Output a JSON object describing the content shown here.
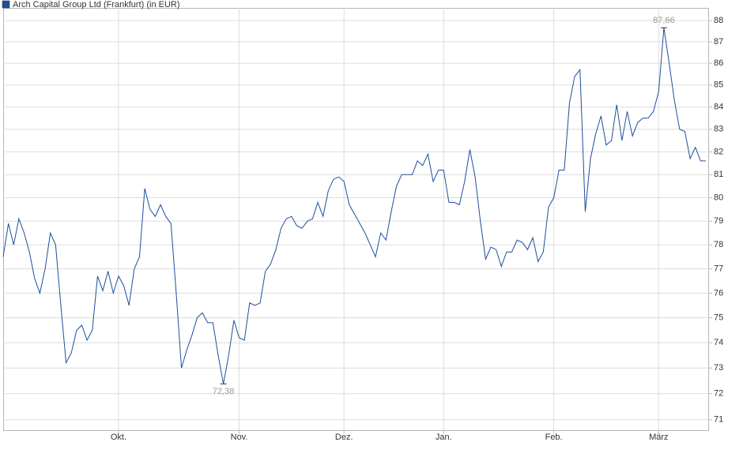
{
  "chart_data": {
    "type": "line",
    "series": [
      {
        "name": "Arch Capital Group Ltd (Frankfurt) (in EUR)",
        "color": "#1f4e9c",
        "values": [
          77.5,
          78.9,
          78.0,
          79.1,
          78.5,
          77.7,
          76.6,
          76.0,
          77.0,
          78.5,
          78.0,
          75.5,
          73.2,
          73.6,
          74.5,
          74.7,
          74.1,
          74.5,
          76.7,
          76.1,
          76.9,
          76.0,
          76.7,
          76.3,
          75.5,
          77.0,
          77.5,
          80.4,
          79.5,
          79.2,
          79.7,
          79.2,
          78.9,
          76.0,
          73.0,
          73.7,
          74.3,
          75.0,
          75.2,
          74.8,
          74.8,
          73.5,
          72.38,
          73.5,
          74.9,
          74.2,
          74.1,
          75.6,
          75.5,
          75.6,
          76.9,
          77.2,
          77.8,
          78.7,
          79.1,
          79.2,
          78.8,
          78.7,
          79.0,
          79.1,
          79.8,
          79.2,
          80.3,
          80.8,
          80.9,
          80.7,
          79.7,
          79.3,
          78.9,
          78.5,
          78.0,
          77.5,
          78.5,
          78.2,
          79.4,
          80.5,
          81.0,
          81.0,
          81.0,
          81.6,
          81.4,
          81.9,
          80.7,
          81.2,
          81.2,
          79.8,
          79.8,
          79.7,
          80.7,
          82.1,
          80.9,
          79.0,
          77.4,
          77.9,
          77.8,
          77.1,
          77.7,
          77.7,
          78.2,
          78.1,
          77.8,
          78.3,
          77.3,
          77.7,
          79.6,
          80.0,
          81.2,
          81.2,
          84.2,
          85.4,
          85.7,
          79.4,
          81.7,
          82.8,
          83.6,
          82.3,
          82.5,
          84.1,
          82.5,
          83.8,
          82.7,
          83.3,
          83.5,
          83.5,
          83.8,
          84.7,
          87.66,
          86.0,
          84.3,
          83.0,
          82.9,
          81.7,
          82.2,
          81.6,
          81.6
        ],
        "value_labels": [
          null,
          null,
          null,
          null,
          null,
          null,
          null,
          null,
          null,
          null,
          null,
          null,
          null,
          null,
          null,
          null,
          null,
          null,
          null,
          null,
          null,
          null,
          null,
          null,
          null,
          null,
          null,
          null,
          null,
          null,
          null,
          null,
          null,
          null,
          null,
          null,
          null,
          null,
          null,
          null,
          null,
          null,
          "72,38",
          null,
          null,
          null,
          null,
          null,
          null,
          null,
          null,
          null,
          null,
          null,
          null,
          null,
          null,
          null,
          null,
          null,
          null,
          null,
          null,
          null,
          null,
          null,
          null,
          null,
          null,
          null,
          null,
          null,
          null,
          null,
          null,
          null,
          null,
          null,
          null,
          null,
          null,
          null,
          null,
          null,
          null,
          null,
          null,
          null,
          null,
          null,
          null,
          null,
          null,
          null,
          null,
          null,
          null,
          null,
          null,
          null,
          null,
          null,
          null,
          null,
          null,
          null,
          null,
          null,
          null,
          null,
          null,
          null,
          null,
          null,
          null,
          null,
          null,
          null,
          null,
          null,
          null,
          null,
          null,
          null,
          null,
          null,
          "87,66",
          null,
          null,
          null,
          null,
          null,
          null,
          null,
          null
        ]
      }
    ],
    "categories": [
      null,
      null,
      null,
      null,
      null,
      null,
      null,
      null,
      null,
      null,
      null,
      null,
      null,
      null,
      null,
      null,
      null,
      null,
      null,
      null,
      null,
      null,
      "Okt.",
      null,
      null,
      null,
      null,
      null,
      null,
      null,
      null,
      null,
      null,
      null,
      null,
      null,
      null,
      null,
      null,
      null,
      null,
      null,
      null,
      null,
      null,
      "Nov.",
      null,
      null,
      null,
      null,
      null,
      null,
      null,
      null,
      null,
      null,
      null,
      null,
      null,
      null,
      null,
      null,
      null,
      null,
      null,
      "Dez.",
      null,
      null,
      null,
      null,
      null,
      null,
      null,
      null,
      null,
      null,
      null,
      null,
      null,
      null,
      null,
      null,
      null,
      null,
      "Jan.",
      null,
      null,
      null,
      null,
      null,
      null,
      null,
      null,
      null,
      null,
      null,
      null,
      null,
      null,
      null,
      null,
      null,
      null,
      null,
      null,
      "Feb.",
      null,
      null,
      null,
      null,
      null,
      null,
      null,
      null,
      null,
      null,
      null,
      null,
      null,
      null,
      null,
      null,
      null,
      null,
      null,
      "März",
      null,
      null,
      null,
      null,
      null,
      null,
      null,
      null,
      null
    ],
    "ylim": [
      70.6,
      88.6
    ],
    "yticks": [
      71,
      72,
      73,
      74,
      75,
      76,
      77,
      78,
      79,
      80,
      81,
      82,
      83,
      84,
      85,
      86,
      87,
      88
    ],
    "log_scale": true,
    "grid": true
  }
}
